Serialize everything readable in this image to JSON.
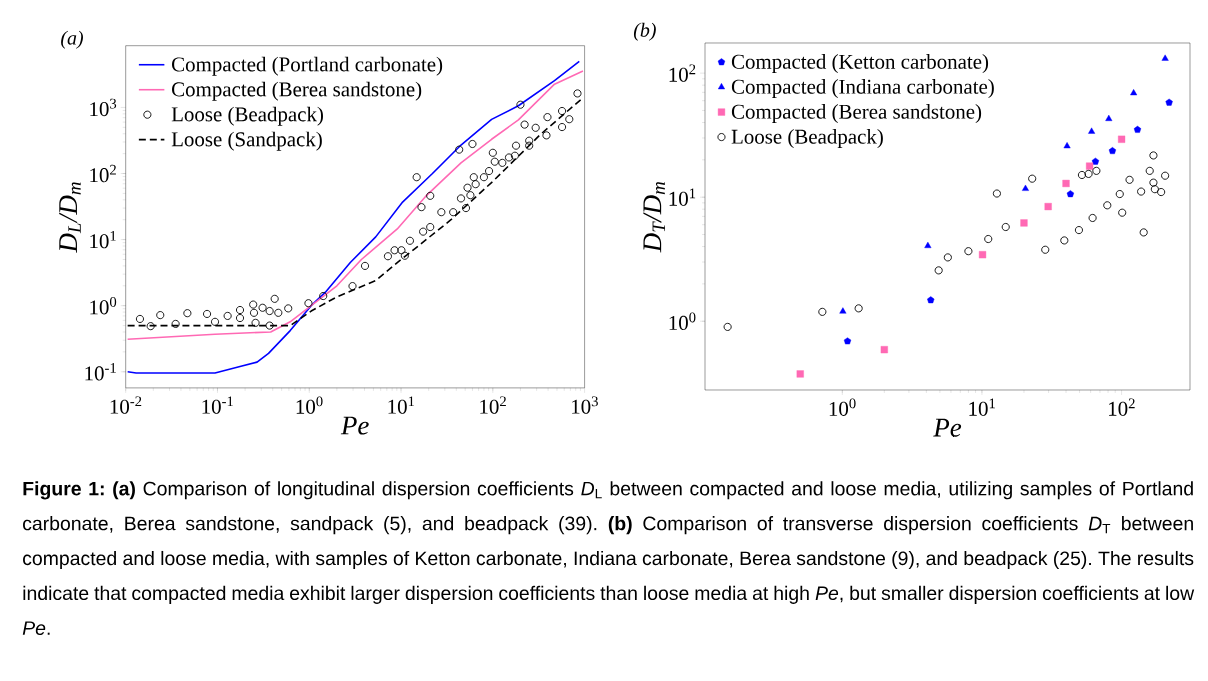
{
  "chart_data": [
    {
      "type": "scatter",
      "title": "(a)",
      "xlabel": "Pe",
      "ylabel": "*D*$_{L}$/*D*$_{m}$",
      "log": "xy",
      "legend": "top left",
      "grid": false,
      "xlim": [
        0.01,
        1000
      ],
      "ylim": [
        0.057,
        8600
      ],
      "xticks": [
        {
          "value": 0.01,
          "label": "10$^{-2}$"
        },
        {
          "value": 0.1,
          "label": "10$^{-1}$"
        },
        {
          "value": 1,
          "label": "10$^{0}$"
        },
        {
          "value": 10,
          "label": "10$^{1}$"
        },
        {
          "value": 100,
          "label": "10$^{2}$"
        },
        {
          "value": 1000,
          "label": "10$^{3}$"
        }
      ],
      "yticks": [
        {
          "value": 0.1,
          "label": "10$^{-1}$"
        },
        {
          "value": 1,
          "label": "10$^{0}$"
        },
        {
          "value": 10,
          "label": "10$^{1}$"
        },
        {
          "value": 100,
          "label": "10$^{2}$"
        },
        {
          "value": 1000,
          "label": "10$^{3}$"
        }
      ],
      "series": [
        {
          "name": "Compacted (Portland carbonate)",
          "type": "line",
          "line_style": "solid",
          "color": "#0000ff",
          "x": [
            0.0105,
            0.013,
            0.094,
            0.176,
            0.27,
            0.36,
            0.62,
            1.05,
            1.5,
            2.8,
            5.3,
            10.4,
            22,
            45,
            97,
            190,
            470,
            875
          ],
          "values": [
            0.1,
            0.096,
            0.096,
            0.12,
            0.14,
            0.19,
            0.42,
            1.0,
            1.6,
            4.5,
            11,
            37,
            100,
            270,
            660,
            1060,
            2540,
            4980
          ]
        },
        {
          "name": "Compacted (Berea sandstone)",
          "type": "line",
          "line_style": "solid",
          "color": "#ff69b4",
          "x": [
            0.0105,
            0.094,
            0.38,
            0.62,
            1.05,
            2.0,
            3.7,
            9.1,
            18.5,
            45,
            97,
            190,
            470,
            960
          ],
          "values": [
            0.31,
            0.37,
            0.4,
            0.57,
            1.0,
            2.0,
            5.0,
            14.5,
            45,
            145,
            330,
            650,
            2250,
            3550
          ]
        },
        {
          "name": "Loose (Beadpack)",
          "type": "scatter",
          "marker": "circle",
          "color": "#000000",
          "x": [
            0.0143,
            0.0187,
            0.0238,
            0.035,
            0.047,
            0.077,
            0.094,
            0.129,
            0.176,
            0.176,
            0.245,
            0.25,
            0.26,
            0.31,
            0.37,
            0.37,
            0.42,
            0.46,
            0.59,
            0.98,
            1.42,
            2.96,
            4.05,
            7.2,
            8.5,
            10.1,
            11.0,
            12.5,
            14.8,
            16.7,
            17.4,
            20.8,
            20.8,
            27.5,
            37,
            43,
            45,
            51,
            53,
            57,
            60,
            62,
            65,
            80,
            91,
            100,
            105,
            127,
            150,
            174,
            179,
            200,
            222,
            249,
            249,
            293,
            384,
            394,
            568,
            568,
            681,
            836
          ],
          "values": [
            0.63,
            0.49,
            0.72,
            0.53,
            0.77,
            0.75,
            0.57,
            0.7,
            0.86,
            0.65,
            1.04,
            0.78,
            0.55,
            0.93,
            0.5,
            0.83,
            1.27,
            0.78,
            0.91,
            1.09,
            1.4,
            1.98,
            4.0,
            5.6,
            6.9,
            6.9,
            5.7,
            9.6,
            88,
            31,
            13.2,
            46,
            15.5,
            26,
            26,
            230,
            42,
            30,
            61,
            47,
            280,
            88,
            69,
            88,
            109,
            206,
            151,
            145,
            175,
            186,
            264,
            1100,
            550,
            264,
            314,
            492,
            378,
            714,
            883,
            505,
            664,
            1630
          ]
        },
        {
          "name": "Loose (Sandpack)",
          "type": "line",
          "line_style": "dashed",
          "color": "#000000",
          "x": [
            0.0105,
            0.36,
            0.62,
            1.05,
            2.0,
            5.3,
            9.1,
            14.2,
            35,
            102,
            330,
            960
          ],
          "values": [
            0.5,
            0.5,
            0.5,
            0.83,
            1.36,
            2.4,
            4.5,
            7.3,
            20,
            78,
            390,
            1400
          ]
        }
      ]
    },
    {
      "type": "scatter",
      "title": "(b)",
      "xlabel": "Pe",
      "ylabel": "*D*$_{T}$/*D*$_{m}$",
      "log": "xy",
      "legend": "top left",
      "grid": false,
      "xlim": [
        0.104,
        309
      ],
      "ylim": [
        0.279,
        175
      ],
      "xticks": [
        {
          "value": 1,
          "label": "10$^{0}$"
        },
        {
          "value": 10,
          "label": "10$^{1}$"
        },
        {
          "value": 100,
          "label": "10$^{2}$"
        }
      ],
      "yticks": [
        {
          "value": 1,
          "label": "10$^{0}$"
        },
        {
          "value": 10,
          "label": "10$^{1}$"
        },
        {
          "value": 100,
          "label": "10$^{2}$"
        }
      ],
      "series": [
        {
          "name": "Compacted (Ketton carbonate)",
          "color": "#0000ff",
          "x": [
            1.09,
            4.3,
            43,
            65,
            86,
            130,
            219
          ],
          "values": [
            0.69,
            1.48,
            10.6,
            19.4,
            23.6,
            35,
            58
          ]
        },
        {
          "name": "Compacted (Indiana carbonate)",
          "marker": "triangle",
          "color": "#0000ff",
          "x": [
            1.01,
            4.1,
            20.5,
            40.7,
            61,
            81,
            122,
            205
          ],
          "values": [
            1.2,
            4.05,
            11.7,
            25.8,
            33.8,
            42.8,
            69,
            131
          ]
        },
        {
          "name": "Compacted (Berea sandstone)",
          "marker": "square",
          "color": "#ff69b4",
          "x": [
            0.5,
            2.0,
            10.1,
            20,
            29.8,
            40,
            59,
            100
          ],
          "values": [
            0.376,
            0.59,
            3.44,
            6.2,
            8.4,
            12.9,
            17.8,
            29.3
          ]
        },
        {
          "name": "Loose (Beadpack)",
          "marker": "circle",
          "color": "#000000",
          "x": [
            0.151,
            0.72,
            1.31,
            4.9,
            5.7,
            8.0,
            11.1,
            12.8,
            14.8,
            22.9,
            28.4,
            38.9,
            49.5,
            52,
            58,
            62,
            66,
            79,
            97,
            101,
            114,
            138,
            144,
            159,
            169,
            169,
            173,
            192,
            205
          ],
          "values": [
            0.9,
            1.19,
            1.27,
            2.57,
            3.27,
            3.67,
            4.6,
            10.7,
            5.75,
            14.1,
            3.77,
            4.48,
            5.43,
            15.1,
            15.4,
            6.8,
            16.3,
            8.6,
            10.6,
            7.5,
            13.8,
            11.1,
            5.2,
            16.3,
            21.7,
            13.1,
            11.6,
            11.0,
            14.9
          ]
        }
      ],
      "annotations": [
        "**Figure 1: (a)** Comparison of longitudinal dispersion coefficients *D*$_{L}$ between compacted and loose media, utilizing samples of Portland carbonate, Berea sandstone, sandpack (5), and beadpack (39). **(b)** Comparison of transverse dispersion coefficients *D*$_{T}$ between compacted and loose media, with samples of Ketton carbonate, Indiana carbonate, Berea sandstone (9), and beadpack (25). The results indicate that compacted media exhibit larger dispersion coefficients than loose media at high *Pe*, but smaller dispersion coefficients at low *Pe*."
      ]
    }
  ]
}
